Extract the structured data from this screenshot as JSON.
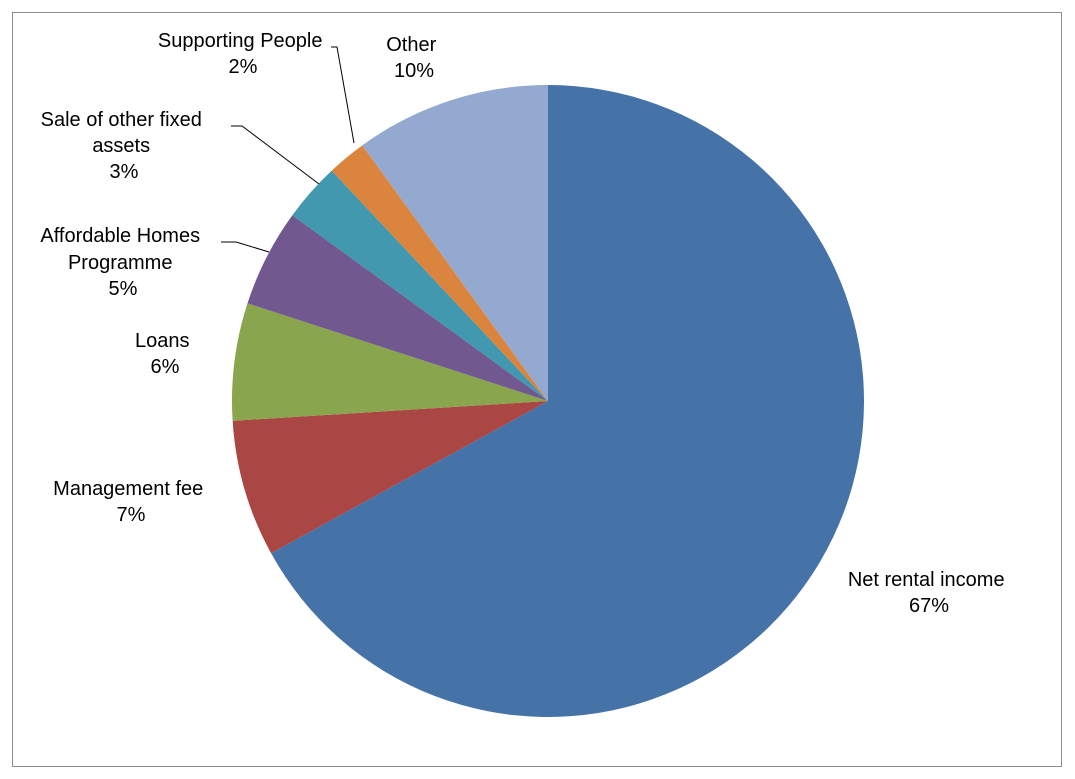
{
  "chart_data": {
    "type": "pie",
    "title": "",
    "start": "12 o'clock",
    "direction": "clockwise",
    "legend": "none",
    "slices": [
      {
        "name": "Net rental income",
        "value": 67,
        "label": "67%",
        "color": "#4572a7"
      },
      {
        "name": "Management fee",
        "value": 7,
        "label": "7%",
        "color": "#aa4643"
      },
      {
        "name": "Loans",
        "value": 6,
        "label": "6%",
        "color": "#89a54e"
      },
      {
        "name": "Affordable Homes Programme",
        "value": 5,
        "label": "5%",
        "color": "#71588f"
      },
      {
        "name": "Sale of other fixed assets",
        "value": 3,
        "label": "3%",
        "color": "#4198af"
      },
      {
        "name": "Supporting People",
        "value": 2,
        "label": "2%",
        "color": "#db843d"
      },
      {
        "name": "Other",
        "value": 10,
        "label": "10%",
        "color": "#93a9cf"
      }
    ]
  }
}
